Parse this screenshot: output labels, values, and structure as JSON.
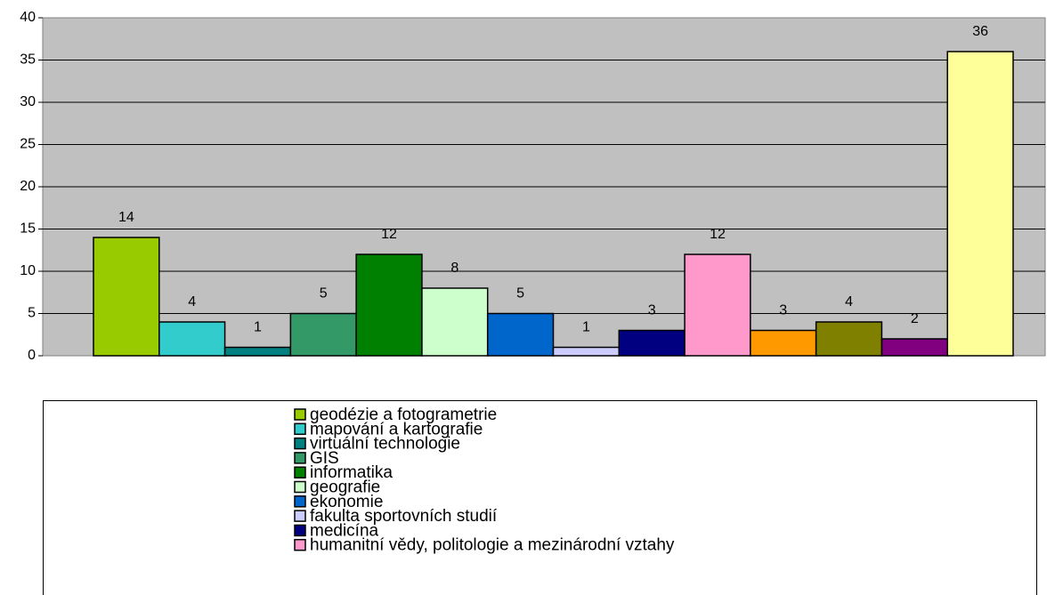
{
  "chart_data": {
    "type": "bar",
    "ylim": [
      0,
      40
    ],
    "yticks": [
      0,
      5,
      10,
      15,
      20,
      25,
      30,
      35,
      40
    ],
    "grid": true,
    "series": [
      {
        "name": "geodézie a fotogrametrie",
        "color": "#99cc00",
        "values": [
          14
        ]
      },
      {
        "name": "mapování a kartografie",
        "color": "#33cccc",
        "values": [
          4
        ]
      },
      {
        "name": "virtuální technologie",
        "color": "#008080",
        "values": [
          1
        ]
      },
      {
        "name": "GIS",
        "color": "#339966",
        "values": [
          5
        ]
      },
      {
        "name": "informatika",
        "color": "#008000",
        "values": [
          12
        ]
      },
      {
        "name": "geografie",
        "color": "#ccffcc",
        "values": [
          8
        ]
      },
      {
        "name": "ekonomie",
        "color": "#0066cc",
        "values": [
          5
        ]
      },
      {
        "name": "fakulta sportovních studií",
        "color": "#ccccff",
        "values": [
          1
        ]
      },
      {
        "name": "medicína",
        "color": "#000080",
        "values": [
          3
        ]
      },
      {
        "name": "humanitní vědy, politologie a mezinárodní vztahy",
        "color": "#ff99cc",
        "values": [
          12
        ]
      },
      {
        "color": "#ff9900",
        "values": [
          3
        ]
      },
      {
        "color": "#808000",
        "values": [
          4
        ]
      },
      {
        "color": "#800080",
        "values": [
          2
        ]
      },
      {
        "color": "#ffff99",
        "values": [
          36
        ]
      }
    ]
  }
}
